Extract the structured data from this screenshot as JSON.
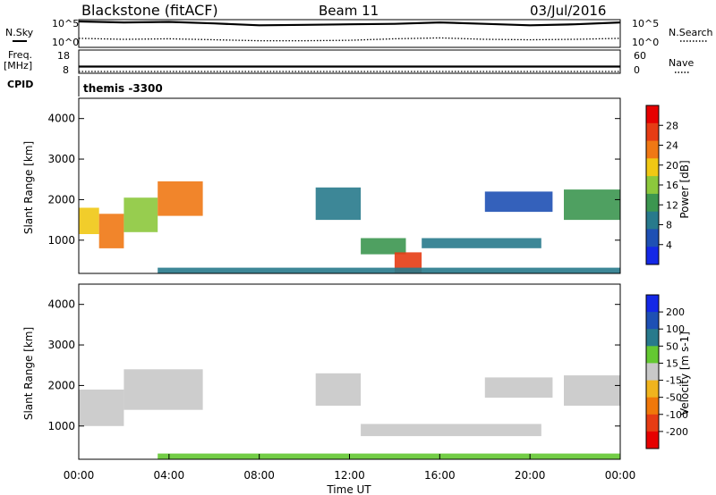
{
  "header": {
    "title": "Blackstone (fitACF)",
    "beam": "Beam 11",
    "date": "03/Jul/2016",
    "nsky_label": "N.Sky",
    "nsearch_label": "N.Search",
    "freq_label_1": "Freq.",
    "freq_label_2": "[MHz]",
    "nave_label": "Nave",
    "cpid_label": "CPID",
    "cpid_value": "themis -3300",
    "noise_ticks_left": [
      "10^5",
      "10^0"
    ],
    "noise_ticks_right": [
      "10^5",
      "10^0"
    ],
    "freq_ticks": [
      "18",
      "8"
    ],
    "nave_ticks": [
      "60",
      "0"
    ]
  },
  "colors": {
    "power_scale": [
      "#1428e6",
      "#1e50b4",
      "#287a8c",
      "#3c9650",
      "#8cc83c",
      "#f0c814",
      "#f07814",
      "#e63c14",
      "#e60000"
    ],
    "velocity_scale": [
      "#1428e6",
      "#1e50b4",
      "#287a8c",
      "#64c832",
      "#c8c8c8",
      "#f0b41e",
      "#f0780a",
      "#e63c14",
      "#e60000"
    ],
    "ground_scatter": "#c8c8c8"
  },
  "chart_data": [
    {
      "type": "line",
      "name": "noise",
      "x_range": [
        0,
        24
      ],
      "series": [
        {
          "name": "N.Sky",
          "style": "solid",
          "x": [
            0,
            2,
            4,
            6,
            8,
            10,
            12,
            14,
            16,
            18,
            20,
            22,
            24
          ],
          "values": [
            5.0,
            4.8,
            4.9,
            4.6,
            4.2,
            4.3,
            4.4,
            4.5,
            4.8,
            4.5,
            4.2,
            4.4,
            4.8
          ]
        },
        {
          "name": "N.Search",
          "style": "dotted",
          "x": [
            0,
            2,
            4,
            6,
            8,
            10,
            12,
            14,
            16,
            18,
            20,
            22,
            24
          ],
          "values": [
            1.5,
            1.3,
            1.4,
            1.2,
            1.0,
            1.0,
            1.1,
            1.4,
            1.6,
            1.3,
            1.2,
            1.3,
            1.5
          ]
        }
      ]
    },
    {
      "type": "line",
      "name": "frequency",
      "x_range": [
        0,
        24
      ],
      "series": [
        {
          "name": "Freq.",
          "style": "solid",
          "x": [
            0,
            24
          ],
          "values": [
            10.5,
            10.5
          ]
        },
        {
          "name": "Nave",
          "style": "dotted",
          "x": [
            0,
            24
          ],
          "values": [
            0,
            0
          ]
        }
      ]
    },
    {
      "type": "heatmap",
      "name": "power",
      "xlabel": "",
      "ylabel": "Slant Range [km]",
      "xlim": [
        0,
        24
      ],
      "ylim": [
        180,
        4500
      ],
      "yticks": [
        "1000",
        "2000",
        "3000",
        "4000"
      ],
      "colorbar_label": "Power [dB]",
      "colorbar_ticks": [
        "28",
        "24",
        "20",
        "16",
        "12",
        "8",
        "4"
      ],
      "bands": [
        {
          "t0": 0.0,
          "t1": 0.9,
          "r0": 1150,
          "r1": 1800,
          "v": 18
        },
        {
          "t0": 0.9,
          "t1": 2.0,
          "r0": 800,
          "r1": 1650,
          "v": 24
        },
        {
          "t0": 2.0,
          "t1": 3.5,
          "r0": 1200,
          "r1": 2050,
          "v": 17
        },
        {
          "t0": 3.5,
          "t1": 5.5,
          "r0": 1600,
          "r1": 2450,
          "v": 22
        },
        {
          "t0": 10.5,
          "t1": 12.5,
          "r0": 1500,
          "r1": 2300,
          "v": 10
        },
        {
          "t0": 12.5,
          "t1": 14.5,
          "r0": 650,
          "r1": 1050,
          "v": 12
        },
        {
          "t0": 14.0,
          "t1": 15.2,
          "r0": 200,
          "r1": 700,
          "v": 26
        },
        {
          "t0": 15.2,
          "t1": 20.5,
          "r0": 800,
          "r1": 1050,
          "v": 10
        },
        {
          "t0": 18.0,
          "t1": 21.0,
          "r0": 1700,
          "r1": 2200,
          "v": 7
        },
        {
          "t0": 21.5,
          "t1": 24.0,
          "r0": 1500,
          "r1": 2250,
          "v": 14
        },
        {
          "t0": 3.5,
          "t1": 24.0,
          "r0": 180,
          "r1": 320,
          "v": 8
        }
      ]
    },
    {
      "type": "heatmap",
      "name": "velocity",
      "xlabel": "Time UT",
      "ylabel": "Slant Range [km]",
      "xlim": [
        0,
        24
      ],
      "ylim": [
        180,
        4500
      ],
      "xticks": [
        "00:00",
        "04:00",
        "08:00",
        "12:00",
        "16:00",
        "20:00",
        "00:00"
      ],
      "yticks": [
        "1000",
        "2000",
        "3000",
        "4000"
      ],
      "colorbar_label": "Velocity [m s-1]",
      "colorbar_ticks": [
        "200",
        "100",
        "50",
        "15",
        "-15",
        "-50",
        "-100",
        "-200"
      ],
      "bands": [
        {
          "t0": 0.0,
          "t1": 2.0,
          "r0": 1000,
          "r1": 1900,
          "v": 0
        },
        {
          "t0": 2.0,
          "t1": 5.5,
          "r0": 1400,
          "r1": 2400,
          "v": 0
        },
        {
          "t0": 10.5,
          "t1": 12.5,
          "r0": 1500,
          "r1": 2300,
          "v": 0
        },
        {
          "t0": 12.5,
          "t1": 20.5,
          "r0": 750,
          "r1": 1050,
          "v": 0
        },
        {
          "t0": 18.0,
          "t1": 21.0,
          "r0": 1700,
          "r1": 2200,
          "v": 0
        },
        {
          "t0": 21.5,
          "t1": 24.0,
          "r0": 1500,
          "r1": 2250,
          "v": 0
        },
        {
          "t0": 3.5,
          "t1": 24.0,
          "r0": 180,
          "r1": 320,
          "v": 30
        }
      ]
    }
  ]
}
